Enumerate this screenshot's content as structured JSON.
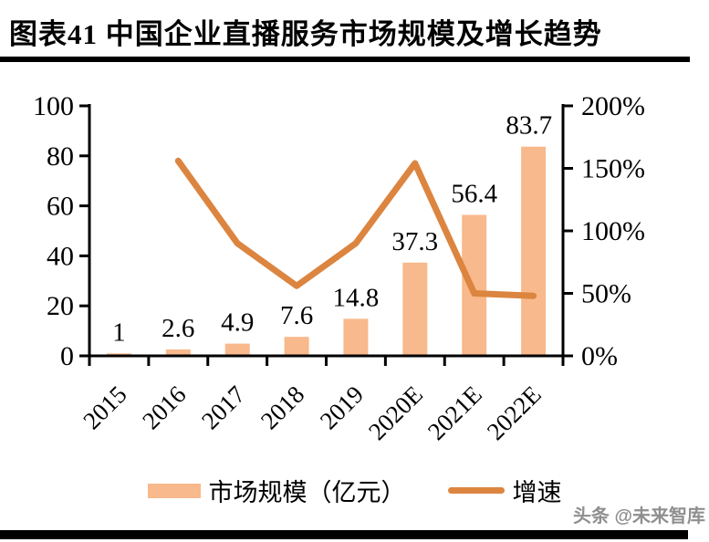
{
  "header": {
    "title": "图表41 中国企业直播服务市场规模及增长趋势"
  },
  "watermark": "头条 @未来智库",
  "colors": {
    "bar": "#F8B98C",
    "line": "#DC8540",
    "axis": "#000000",
    "watermark": "#8f8f8f"
  },
  "chart_data": {
    "type": "bar+line",
    "title": "中国企业直播服务市场规模及增长趋势",
    "categories": [
      "2015",
      "2016",
      "2017",
      "2018",
      "2019",
      "2020E",
      "2021E",
      "2022E"
    ],
    "series": [
      {
        "name": "市场规模（亿元）",
        "type": "bar",
        "axis": "left",
        "values": [
          1,
          2.6,
          4.9,
          7.6,
          14.8,
          37.3,
          56.4,
          83.7
        ],
        "data_labels": [
          "1",
          "2.6",
          "4.9",
          "7.6",
          "14.8",
          "37.3",
          "56.4",
          "83.7"
        ],
        "color": "#F8B98C"
      },
      {
        "name": "增速",
        "type": "line",
        "axis": "right",
        "values_pct": [
          null,
          156,
          90,
          56,
          90,
          154,
          50,
          48
        ],
        "color": "#DC8540"
      }
    ],
    "left_axis": {
      "min": 0,
      "max": 100,
      "ticks": [
        0,
        20,
        40,
        60,
        80,
        100
      ]
    },
    "right_axis": {
      "min": 0,
      "max": 200,
      "tick_values": [
        0,
        50,
        100,
        150,
        200
      ],
      "tick_labels": [
        "0%",
        "50%",
        "100%",
        "150%",
        "200%"
      ]
    },
    "legend": {
      "position": "bottom",
      "items": [
        "市场规模（亿元）",
        "增速"
      ]
    },
    "grid": "off"
  }
}
